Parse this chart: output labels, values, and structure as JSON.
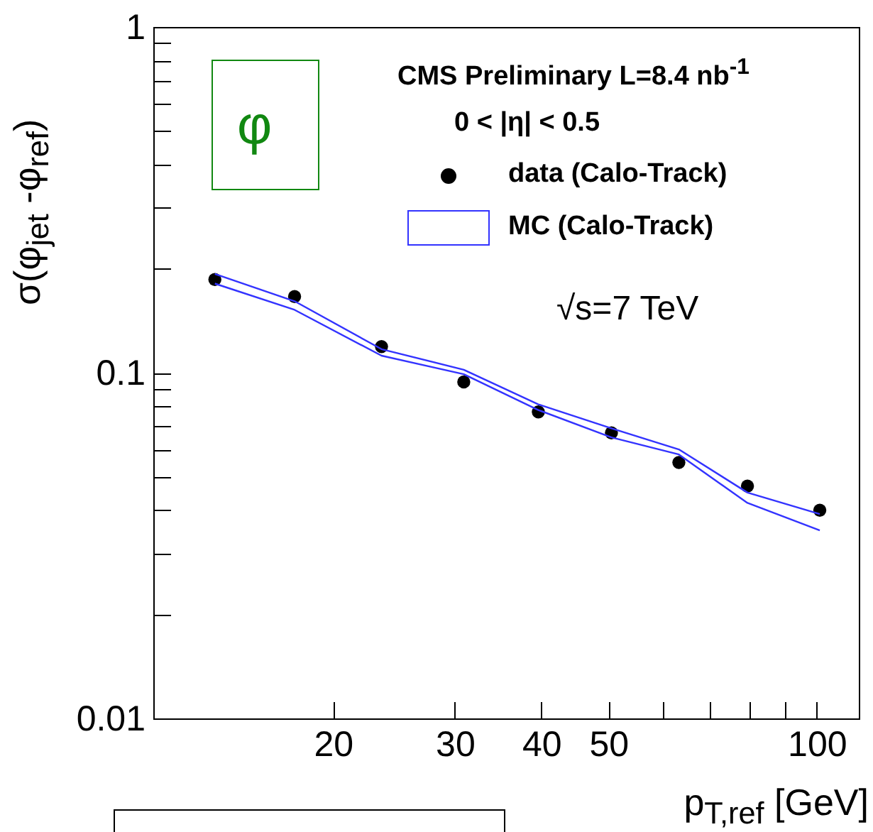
{
  "chart_data": {
    "type": "scatter",
    "xlabel": "p$_{T,ref}$ [GeV]",
    "ylabel": "σ(φ$_{jet}$ -φ$_{ref}$)",
    "x": [
      13.5,
      17.6,
      23.5,
      30.9,
      39.6,
      50.5,
      63.2,
      79.4,
      101
    ],
    "series": [
      {
        "name": "data (Calo-Track)",
        "marker": "circle",
        "color": "#000000",
        "values": [
          0.186,
          0.166,
          0.119,
          0.094,
          0.077,
          0.067,
          0.055,
          0.047,
          0.04
        ]
      },
      {
        "name": "MC (Calo-Track)",
        "type": "line",
        "marker": "none",
        "color": "#3333ff",
        "values": [
          0.193,
          0.161,
          0.117,
          0.102,
          0.081,
          0.069,
          0.06,
          0.045,
          0.039
        ]
      },
      {
        "type": "line",
        "marker": "none",
        "color": "#3333ff",
        "values": [
          0.181,
          0.152,
          0.112,
          0.099,
          0.078,
          0.065,
          0.058,
          0.042,
          0.035
        ]
      }
    ],
    "log": "xy",
    "xlim": [
      11,
      115
    ],
    "ylim": [
      0.01,
      1
    ],
    "xticks": [
      20,
      30,
      40,
      50,
      {
        "value": 60,
        "label": null
      },
      {
        "value": 70,
        "label": null
      },
      {
        "value": 80,
        "label": null
      },
      {
        "value": 90,
        "label": null
      },
      100
    ],
    "yticks": [
      0.01,
      {
        "value": 0.02,
        "label": null
      },
      {
        "value": 0.03,
        "label": null
      },
      {
        "value": 0.04,
        "label": null
      },
      {
        "value": 0.05,
        "label": null
      },
      {
        "value": 0.06,
        "label": null
      },
      {
        "value": 0.07,
        "label": null
      },
      {
        "value": 0.08,
        "label": null
      },
      {
        "value": 0.09,
        "label": null
      },
      0.1,
      {
        "value": 0.2,
        "label": null
      },
      {
        "value": 0.3,
        "label": null
      },
      {
        "value": 0.4,
        "label": null
      },
      {
        "value": 0.5,
        "label": null
      },
      {
        "value": 0.6,
        "label": null
      },
      {
        "value": 0.7,
        "label": null
      },
      {
        "value": 0.8,
        "label": null
      },
      {
        "value": 0.9,
        "label": null
      },
      1
    ],
    "legend": "top right",
    "annotations": [
      "CMS Preliminary   L=8.4 nb$^{-1}$",
      "0 < |η| < 0.5",
      "√s=7 TeV",
      "φ"
    ]
  }
}
